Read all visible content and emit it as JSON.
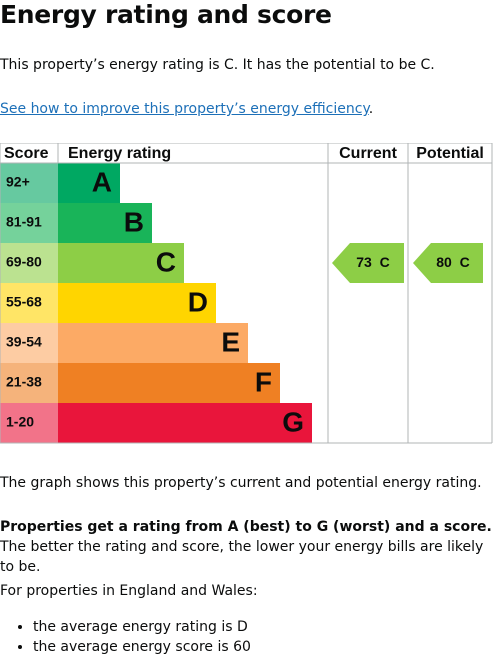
{
  "title": "Energy rating and score",
  "intro": "This property’s energy rating is C. It has the potential to be C.",
  "link": {
    "text": "See how to improve this property’s energy efficiency",
    "suffix": "."
  },
  "table": {
    "headers": [
      "Score",
      "Energy rating",
      "Current",
      "Potential"
    ],
    "bands": [
      {
        "score": "92+",
        "letter": "A",
        "color": "#00a862",
        "light": "#66c9a0"
      },
      {
        "score": "81-91",
        "letter": "B",
        "color": "#19b459",
        "light": "#75d29b"
      },
      {
        "score": "69-80",
        "letter": "C",
        "color": "#8dce46",
        "light": "#bbe290"
      },
      {
        "score": "55-68",
        "letter": "D",
        "color": "#ffd500",
        "light": "#ffe566"
      },
      {
        "score": "39-54",
        "letter": "E",
        "color": "#fcaa65",
        "light": "#fdcca3"
      },
      {
        "score": "21-38",
        "letter": "F",
        "color": "#ef8023",
        "light": "#f5b37b"
      },
      {
        "score": "1-20",
        "letter": "G",
        "color": "#e9153b",
        "light": "#f27389"
      }
    ],
    "current": {
      "score": 73,
      "band": "C"
    },
    "potential": {
      "score": 80,
      "band": "C"
    }
  },
  "graph_note": "The graph shows this property’s current and potential energy rating.",
  "explainer": {
    "bold": "Properties get a rating from A (best) to G (worst) and a score.",
    "text": "The better the rating and score, the lower your energy bills are likely to be."
  },
  "region_note": "For properties in England and Wales:",
  "averages": [
    "the average energy rating is D",
    "the average energy score is 60"
  ]
}
